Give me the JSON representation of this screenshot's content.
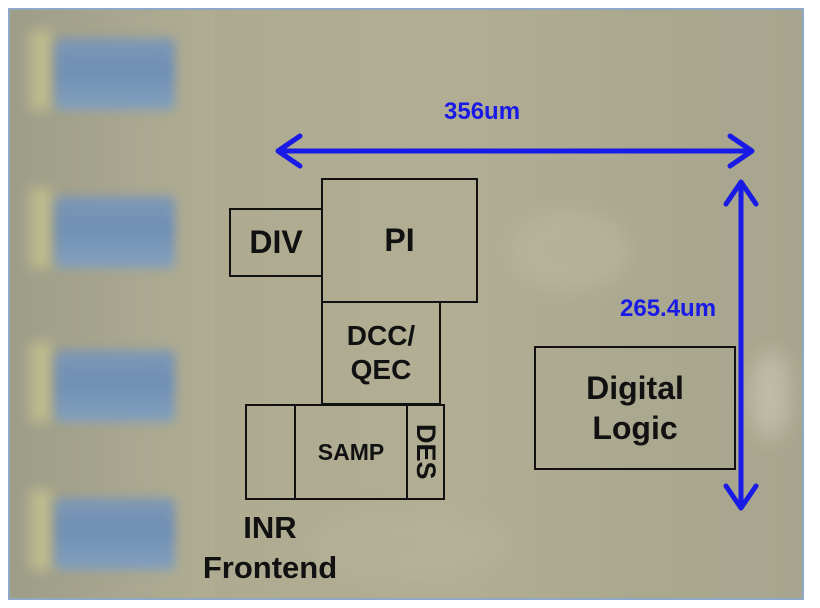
{
  "blocks": {
    "div": "DIV",
    "pi": "PI",
    "dcc_qec": "DCC/\nQEC",
    "samp": "SAMP",
    "des": "DES",
    "digital_logic": "Digital\nLogic",
    "inr_frontend": "INR\nFrontend"
  },
  "dimensions": {
    "width": "356um",
    "height": "265.4um"
  },
  "colors": {
    "arrow": "#1a1ae6",
    "block_border": "#111111"
  }
}
